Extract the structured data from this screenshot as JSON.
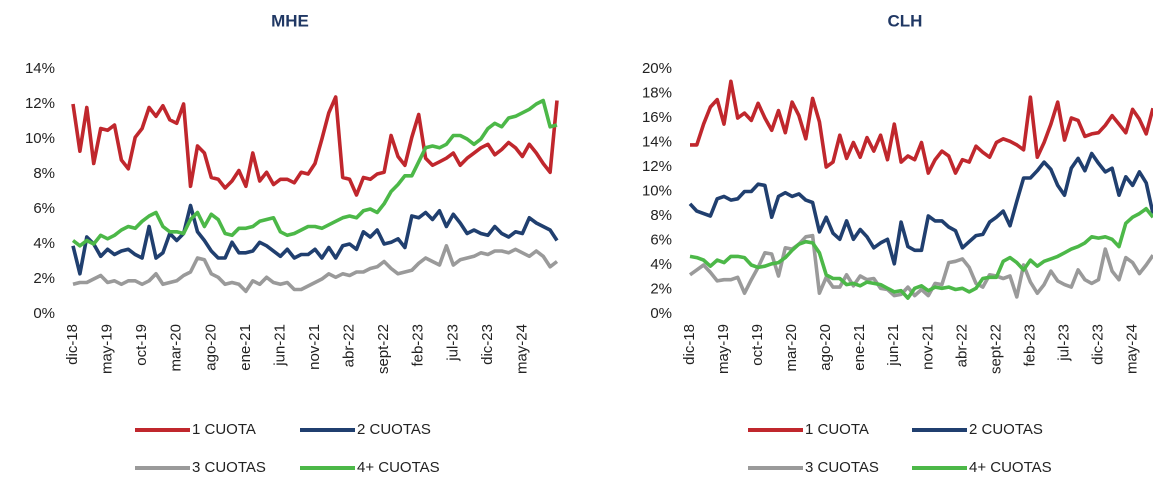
{
  "chart_data": [
    {
      "type": "line",
      "title": "MHE",
      "categories": [
        "dic-18",
        null,
        null,
        null,
        null,
        "may-19",
        null,
        null,
        null,
        null,
        "oct-19",
        null,
        null,
        null,
        null,
        "mar-20",
        null,
        null,
        null,
        null,
        "ago-20",
        null,
        null,
        null,
        null,
        "ene-21",
        null,
        null,
        null,
        null,
        "jun-21",
        null,
        null,
        null,
        null,
        "nov-21",
        null,
        null,
        null,
        null,
        "abr-22",
        null,
        null,
        null,
        null,
        "sept-22",
        null,
        null,
        null,
        null,
        "feb-23",
        null,
        null,
        null,
        null,
        "jul-23",
        null,
        null,
        null,
        null,
        "dic-23",
        null,
        null,
        null,
        null,
        "may-24",
        null,
        null,
        null,
        null,
        null
      ],
      "ylim": [
        0,
        14
      ],
      "yticks": [
        {
          "value": 0,
          "label": "0%"
        },
        {
          "value": 2,
          "label": "2%"
        },
        {
          "value": 4,
          "label": "4%"
        },
        {
          "value": 6,
          "label": "6%"
        },
        {
          "value": 8,
          "label": "8%"
        },
        {
          "value": 10,
          "label": "10%"
        },
        {
          "value": 12,
          "label": "12%"
        },
        {
          "value": 14,
          "label": "14%"
        }
      ],
      "series": [
        {
          "name": "1 CUOTA",
          "color": "#c0272d",
          "values": [
            12,
            9.3,
            11.8,
            8.6,
            10.6,
            10.5,
            10.8,
            8.8,
            8.3,
            10.1,
            10.6,
            11.8,
            11.3,
            11.9,
            11.1,
            10.9,
            12,
            7.3,
            9.6,
            9.2,
            7.8,
            7.7,
            7.2,
            7.6,
            8.2,
            7.3,
            9.2,
            7.6,
            8.1,
            7.4,
            7.7,
            7.7,
            7.5,
            8.1,
            8,
            8.6,
            10,
            11.5,
            12.4,
            7.8,
            7.7,
            6.8,
            7.8,
            7.7,
            8,
            8.1,
            10.2,
            9,
            8.5,
            10.1,
            11.4,
            8.9,
            8.5,
            8.7,
            8.9,
            9.2,
            8.5,
            8.9,
            9.2,
            9.5,
            9.7,
            9.1,
            9.4,
            9.8,
            9.5,
            9,
            9.7,
            9.2,
            8.6,
            8.1,
            12.2
          ]
        },
        {
          "name": "2 CUOTAS",
          "color": "#203f6f",
          "values": [
            3.9,
            2.3,
            4.4,
            4,
            3.3,
            3.7,
            3.4,
            3.6,
            3.7,
            3.4,
            3.2,
            5,
            3.2,
            3.5,
            4.6,
            4.2,
            4.6,
            6.2,
            4.7,
            4.2,
            3.6,
            3.2,
            3.2,
            4.1,
            3.5,
            3.5,
            3.6,
            4.1,
            3.9,
            3.6,
            3.3,
            3.7,
            3.2,
            3.4,
            3.4,
            3.7,
            3.2,
            3.8,
            3.2,
            3.9,
            4,
            3.7,
            4.7,
            4.4,
            4.8,
            4,
            4.1,
            4.3,
            3.8,
            5.6,
            5.5,
            5.8,
            5.4,
            5.9,
            5,
            5.7,
            5.2,
            4.6,
            4.8,
            4.6,
            4.5,
            5,
            4.6,
            4.4,
            4.7,
            4.6,
            5.5,
            5.2,
            5,
            4.8,
            4.2
          ]
        },
        {
          "name": "3 CUOTAS",
          "color": "#9a9a9a",
          "values": [
            1.7,
            1.8,
            1.8,
            2,
            2.2,
            1.8,
            1.9,
            1.7,
            1.9,
            1.9,
            1.7,
            1.9,
            2.3,
            1.7,
            1.8,
            1.9,
            2.2,
            2.4,
            3.2,
            3.1,
            2.3,
            2.1,
            1.7,
            1.8,
            1.7,
            1.3,
            1.9,
            1.7,
            2.1,
            1.8,
            1.7,
            1.8,
            1.4,
            1.4,
            1.6,
            1.8,
            2,
            2.3,
            2.1,
            2.3,
            2.2,
            2.4,
            2.4,
            2.6,
            2.7,
            3,
            2.6,
            2.3,
            2.4,
            2.5,
            2.9,
            3.2,
            3,
            2.8,
            3.9,
            2.8,
            3.1,
            3.2,
            3.3,
            3.5,
            3.4,
            3.6,
            3.6,
            3.5,
            3.7,
            3.5,
            3.3,
            3.6,
            3.3,
            2.7,
            3
          ]
        },
        {
          "name": "4+ CUOTAS",
          "color": "#4cb848",
          "values": [
            4.2,
            3.9,
            4.2,
            4,
            4.5,
            4.3,
            4.5,
            4.8,
            5,
            4.9,
            5.3,
            5.6,
            5.8,
            5,
            4.7,
            4.7,
            4.6,
            5.4,
            5.8,
            5,
            5.7,
            5.4,
            4.6,
            4.5,
            4.9,
            4.9,
            5,
            5.3,
            5.4,
            5.5,
            4.7,
            4.5,
            4.6,
            4.8,
            5,
            5,
            4.9,
            5.1,
            5.3,
            5.5,
            5.6,
            5.5,
            5.9,
            6,
            5.8,
            6.3,
            7,
            7.4,
            7.9,
            7.9,
            8.7,
            9.5,
            9.6,
            9.5,
            9.7,
            10.2,
            10.2,
            10,
            9.7,
            10,
            10.6,
            10.9,
            10.7,
            11.2,
            11.3,
            11.5,
            11.7,
            12,
            12.2,
            10.7,
            10.8
          ]
        }
      ]
    },
    {
      "type": "line",
      "title": "CLH",
      "categories": [
        "dic-18",
        null,
        null,
        null,
        null,
        "may-19",
        null,
        null,
        null,
        null,
        "oct-19",
        null,
        null,
        null,
        null,
        "mar-20",
        null,
        null,
        null,
        null,
        "ago-20",
        null,
        null,
        null,
        null,
        "ene-21",
        null,
        null,
        null,
        null,
        "jun-21",
        null,
        null,
        null,
        null,
        "nov-21",
        null,
        null,
        null,
        null,
        "abr-22",
        null,
        null,
        null,
        null,
        "sept-22",
        null,
        null,
        null,
        null,
        "feb-23",
        null,
        null,
        null,
        null,
        "jul-23",
        null,
        null,
        null,
        null,
        "dic-23",
        null,
        null,
        null,
        null,
        "may-24",
        null,
        null,
        null
      ],
      "ylim": [
        0,
        20
      ],
      "yticks": [
        {
          "value": 0,
          "label": "0%"
        },
        {
          "value": 2,
          "label": "2%"
        },
        {
          "value": 4,
          "label": "4%"
        },
        {
          "value": 6,
          "label": "6%"
        },
        {
          "value": 8,
          "label": "8%"
        },
        {
          "value": 10,
          "label": "10%"
        },
        {
          "value": 12,
          "label": "12%"
        },
        {
          "value": 14,
          "label": "14%"
        },
        {
          "value": 16,
          "label": "16%"
        },
        {
          "value": 18,
          "label": "18%"
        },
        {
          "value": 20,
          "label": "20%"
        }
      ],
      "series": [
        {
          "name": "1 CUOTA",
          "color": "#c0272d",
          "values": [
            13.8,
            13.8,
            15.5,
            16.9,
            17.5,
            15.5,
            19,
            16,
            16.4,
            15.8,
            17.2,
            16,
            15,
            16.6,
            14.8,
            17.3,
            16.2,
            14.3,
            17.6,
            15.7,
            12,
            12.4,
            14.6,
            12.7,
            14,
            12.8,
            14.4,
            13.3,
            14.6,
            12.6,
            15.5,
            12.4,
            12.9,
            12.6,
            14,
            11.5,
            12.6,
            13.3,
            12.9,
            11.5,
            12.6,
            12.4,
            13.7,
            13.2,
            12.8,
            14,
            14.3,
            14.1,
            13.8,
            13.4,
            17.7,
            12.8,
            14,
            15.5,
            17.3,
            14.2,
            16,
            15.8,
            14.5,
            14.7,
            14.8,
            15.4,
            16.2,
            15.5,
            14.8,
            16.7,
            15.9,
            14.7,
            16.8
          ]
        },
        {
          "name": "2 CUOTAS",
          "color": "#203f6f",
          "values": [
            9,
            8.4,
            8.2,
            8,
            9.4,
            9.6,
            9.3,
            9.4,
            10,
            10,
            10.6,
            10.5,
            7.9,
            9.6,
            9.9,
            9.6,
            9.8,
            9.3,
            9.1,
            6.7,
            7.9,
            6.6,
            6.1,
            7.6,
            6.1,
            6.9,
            6.3,
            5.4,
            5.8,
            6.1,
            4.1,
            7.5,
            5.5,
            5.2,
            5.2,
            8,
            7.6,
            7.6,
            7.1,
            6.8,
            5.4,
            5.9,
            6.4,
            6.5,
            7.5,
            7.9,
            8.4,
            7.2,
            9.2,
            11.1,
            11.1,
            11.7,
            12.4,
            11.8,
            10.5,
            9.7,
            11.9,
            12.7,
            11.7,
            13.1,
            12.3,
            11.6,
            11.9,
            9.7,
            11.2,
            10.5,
            11.6,
            10.7,
            8.2
          ]
        },
        {
          "name": "3 CUOTAS",
          "color": "#9a9a9a",
          "values": [
            3.2,
            3.6,
            4,
            3.4,
            2.7,
            2.8,
            2.8,
            3,
            1.7,
            2.8,
            3.8,
            5,
            4.9,
            3.1,
            5.4,
            5.3,
            5.7,
            6.3,
            6.4,
            1.7,
            3,
            2.2,
            2.2,
            3.2,
            2.3,
            3.1,
            2.8,
            2.9,
            2.1,
            2,
            1.5,
            1.6,
            2.2,
            1.5,
            2,
            1.5,
            2.5,
            2.4,
            4.2,
            4.3,
            4.5,
            3.8,
            2.5,
            2.2,
            3.2,
            3.1,
            2.9,
            3.1,
            1.4,
            4,
            2.6,
            1.7,
            2.4,
            3.5,
            2.7,
            2.4,
            2.2,
            3.6,
            2.8,
            2.5,
            2.8,
            5.3,
            3.5,
            2.8,
            4.6,
            4.2,
            3.3,
            4,
            4.8
          ]
        },
        {
          "name": "4+ CUOTAS",
          "color": "#4cb848",
          "values": [
            4.7,
            4.6,
            4.4,
            3.9,
            4.4,
            4.2,
            4.7,
            4.7,
            4.6,
            4,
            3.8,
            3.9,
            4.1,
            4.2,
            4.6,
            5.2,
            5.7,
            5.9,
            5.8,
            5,
            3.2,
            2.9,
            2.9,
            2.4,
            2.5,
            2.3,
            2.6,
            2.5,
            2.4,
            2.1,
            1.8,
            1.9,
            1.3,
            2.1,
            2.3,
            1.9,
            2.2,
            2.1,
            2.2,
            2,
            2.1,
            1.8,
            2.1,
            2.9,
            3,
            3,
            4.3,
            4.6,
            4.2,
            3.6,
            4.4,
            3.9,
            4.3,
            4.5,
            4.7,
            5,
            5.3,
            5.5,
            5.8,
            6.3,
            6.2,
            6.3,
            6.1,
            5.5,
            7.4,
            7.9,
            8.2,
            8.6,
            7.9
          ]
        }
      ]
    }
  ]
}
